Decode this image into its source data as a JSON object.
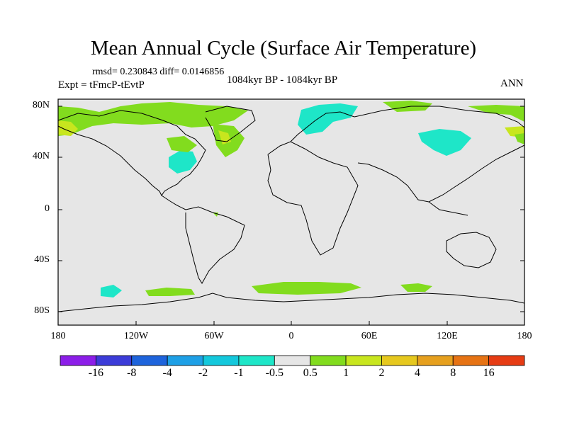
{
  "title": "Mean Annual Cycle (Surface Air Temperature)",
  "stats": "rmsd= 0.230843 diff= 0.0146856",
  "experiment": "Expt = tFmcP-tEvtP",
  "period": "1084kyr BP - 1084kyr BP",
  "season": "ANN",
  "lat_labels": [
    "80N",
    "40N",
    "0",
    "40S",
    "80S"
  ],
  "lon_labels": [
    "180",
    "120W",
    "60W",
    "0",
    "60E",
    "120E",
    "180"
  ],
  "colorbar": {
    "labels": [
      "-16",
      "-8",
      "-4",
      "-2",
      "-1",
      "-0.5",
      "0.5",
      "1",
      "2",
      "4",
      "8",
      "16"
    ],
    "colors": [
      "#8c1ee8",
      "#3c3cd8",
      "#1e64dc",
      "#1ea0e6",
      "#14c8dc",
      "#1ee6c8",
      "#e6e6e6",
      "#82dc1e",
      "#c8e61e",
      "#e6c81e",
      "#e6a01e",
      "#e67314",
      "#e63c14"
    ]
  },
  "colors": {
    "land_ocean": "#e6e6e6",
    "cyan": "#1ee6c8",
    "green": "#82dc1e",
    "yellowgreen": "#c8e61e"
  }
}
